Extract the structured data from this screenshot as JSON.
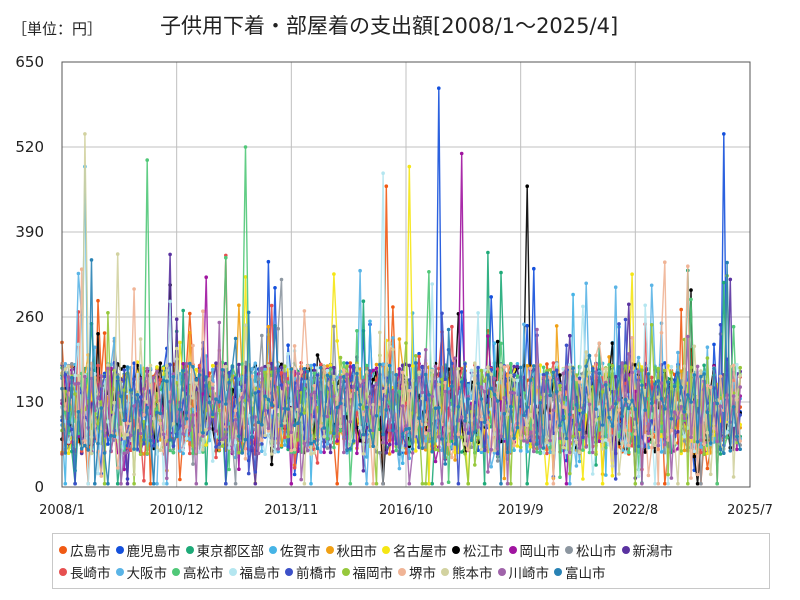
{
  "unit_label": "［単位：円］",
  "chart_data": {
    "type": "line",
    "title": "子供用下着・部屋着の支出額[2008/1～2025/4]",
    "xlabel": "",
    "ylabel": "",
    "x_start": "2008/1",
    "x_end": "2025/4",
    "ylim": [
      0,
      650
    ],
    "yticks": [
      0,
      130,
      260,
      390,
      520,
      650
    ],
    "xticks": [
      "2008/1",
      "2010/12",
      "2013/11",
      "2016/10",
      "2019/9",
      "2022/8",
      "2025/7"
    ],
    "grid": true,
    "legend_position": "bottom",
    "series": [
      {
        "name": "広島市",
        "color": "#f05a14"
      },
      {
        "name": "鹿児島市",
        "color": "#1450dc"
      },
      {
        "name": "東京都区部",
        "color": "#1eaa78"
      },
      {
        "name": "佐賀市",
        "color": "#46b4e6"
      },
      {
        "name": "秋田市",
        "color": "#f0a014"
      },
      {
        "name": "名古屋市",
        "color": "#f5e614"
      },
      {
        "name": "松江市",
        "color": "#000000"
      },
      {
        "name": "岡山市",
        "color": "#a014a0"
      },
      {
        "name": "松山市",
        "color": "#8c96a0"
      },
      {
        "name": "新潟市",
        "color": "#5a32a0"
      },
      {
        "name": "長崎市",
        "color": "#e65050"
      },
      {
        "name": "大阪市",
        "color": "#5ab4e6"
      },
      {
        "name": "高松市",
        "color": "#50c878"
      },
      {
        "name": "福島市",
        "color": "#b4e6f0"
      },
      {
        "name": "前橋市",
        "color": "#3c50c8"
      },
      {
        "name": "福岡市",
        "color": "#96c83c"
      },
      {
        "name": "堺市",
        "color": "#f0b496"
      },
      {
        "name": "熊本市",
        "color": "#d2d2a0"
      },
      {
        "name": "川崎市",
        "color": "#a064aa"
      },
      {
        "name": "富山市",
        "color": "#2882b4"
      }
    ],
    "annotated_peaks": [
      {
        "series": "鹿児島市",
        "x": "2017/8",
        "y": 610
      },
      {
        "series": "鹿児島市",
        "x": "2024/11",
        "y": 540
      },
      {
        "series": "熊本市",
        "x": "2008/8",
        "y": 540
      },
      {
        "series": "高松市",
        "x": "2012/9",
        "y": 520
      },
      {
        "series": "岡山市",
        "x": "2018/3",
        "y": 510
      },
      {
        "series": "佐賀市",
        "x": "2008/8",
        "y": 490
      },
      {
        "series": "高松市",
        "x": "2010/3",
        "y": 500
      },
      {
        "series": "名古屋市",
        "x": "2016/11",
        "y": 490
      },
      {
        "series": "福島市",
        "x": "2016/3",
        "y": 480
      },
      {
        "series": "松江市",
        "x": "2019/11",
        "y": 460
      },
      {
        "series": "広島市",
        "x": "2016/4",
        "y": 460
      }
    ]
  }
}
